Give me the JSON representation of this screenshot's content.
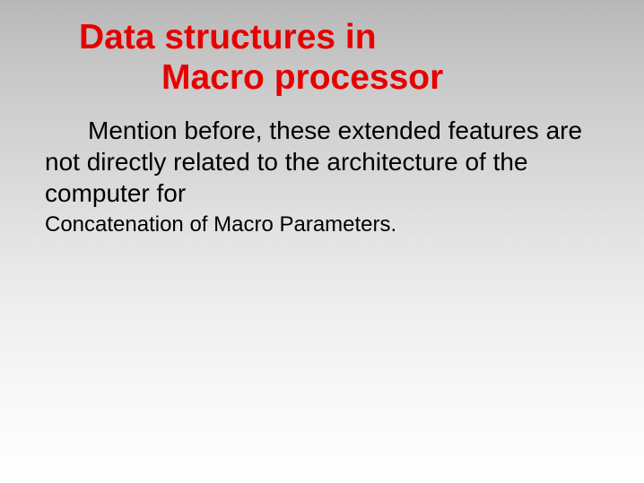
{
  "slide": {
    "title_line1": "Data structures  in",
    "title_line2": "Macro processor",
    "body": "Mention before, these extended features are not directly related to the architecture of the computer for",
    "sub": "Concatenation of Macro Parameters.",
    "colors": {
      "title_color": "#e60000",
      "body_color": "#000000",
      "bg_gradient_top": "#b8b8b8",
      "bg_gradient_bottom": "#ffffff"
    },
    "typography": {
      "title_fontsize": 39,
      "title_weight": "bold",
      "body_fontsize": 28,
      "sub_fontsize": 24,
      "font_family": "Verdana"
    }
  }
}
